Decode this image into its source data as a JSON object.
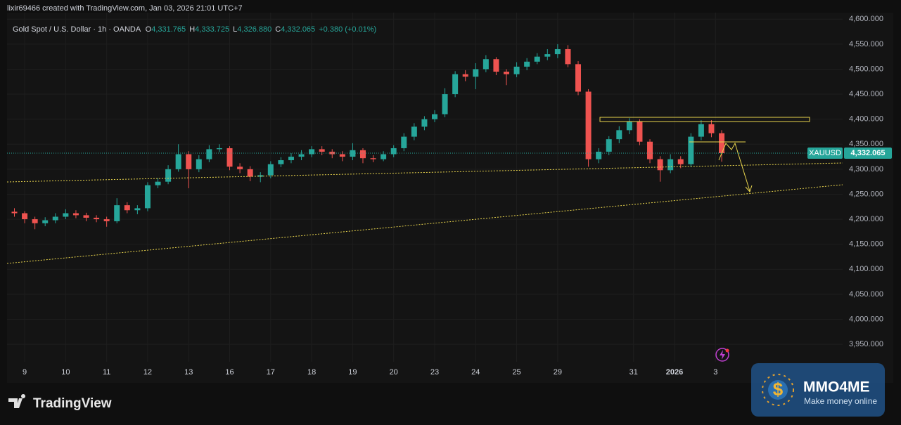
{
  "header": {
    "credit": "lixir69466 created with TradingView.com, Jan 03, 2026 21:01 UTC+7",
    "symbol_line": "Gold Spot / U.S. Dollar · 1h · OANDA",
    "ohlc": [
      {
        "label": "O",
        "value": "4,331.765"
      },
      {
        "label": "H",
        "value": "4,333.725"
      },
      {
        "label": "L",
        "value": "4,326.880"
      },
      {
        "label": "C",
        "value": "4,332.065"
      }
    ],
    "change": "+0.380 (+0.01%)"
  },
  "footer": {
    "brand": "TradingView"
  },
  "watermark": {
    "icon_text": "$",
    "title": "MMO4ME",
    "subtitle": "Make money online"
  },
  "chart_data": {
    "type": "candlestick",
    "symbol": "XAUUSD",
    "last_price_label": "4,332.065",
    "up_color": "#26a69a",
    "down_color": "#ef5350",
    "grid": true,
    "x": [
      -0.25,
      0,
      0.25,
      0.5,
      0.75,
      1,
      1.25,
      1.5,
      1.75,
      2,
      2.25,
      2.5,
      2.75,
      3,
      3.25,
      3.5,
      3.75,
      4,
      4.25,
      4.5,
      4.75,
      5,
      5.25,
      5.5,
      5.75,
      6,
      6.25,
      6.5,
      6.75,
      7,
      7.25,
      7.5,
      7.75,
      8,
      8.25,
      8.5,
      8.75,
      9,
      9.25,
      9.5,
      9.75,
      10,
      10.25,
      10.5,
      10.75,
      11,
      11.25,
      11.5,
      11.75,
      12,
      12.25,
      12.5,
      12.75,
      13,
      13.25,
      13.5,
      13.75,
      14,
      14.25,
      14.5,
      14.75,
      15,
      15.25,
      15.5,
      15.75,
      16,
      16.25,
      16.5,
      16.75,
      17
    ],
    "open": [
      4215,
      4212,
      4200,
      4192,
      4198,
      4205,
      4212,
      4208,
      4203,
      4200,
      4196,
      4228,
      4218,
      4222,
      4268,
      4275,
      4300,
      4330,
      4300,
      4320,
      4340,
      4342,
      4305,
      4300,
      4285,
      4288,
      4310,
      4318,
      4325,
      4330,
      4340,
      4335,
      4330,
      4325,
      4338,
      4322,
      4320,
      4330,
      4342,
      4365,
      4385,
      4400,
      4410,
      4450,
      4490,
      4485,
      4500,
      4520,
      4495,
      4490,
      4505,
      4515,
      4525,
      4530,
      4540,
      4510,
      4455,
      4320,
      4335,
      4360,
      4378,
      4395,
      4355,
      4320,
      4298,
      4320,
      4310,
      4365,
      4390,
      4372
    ],
    "high": [
      4222,
      4216,
      4205,
      4204,
      4212,
      4220,
      4218,
      4213,
      4208,
      4205,
      4242,
      4234,
      4228,
      4274,
      4282,
      4308,
      4350,
      4336,
      4328,
      4348,
      4350,
      4346,
      4312,
      4306,
      4294,
      4316,
      4324,
      4332,
      4338,
      4346,
      4346,
      4340,
      4336,
      4352,
      4342,
      4328,
      4336,
      4348,
      4372,
      4392,
      4406,
      4418,
      4462,
      4496,
      4498,
      4512,
      4528,
      4524,
      4500,
      4514,
      4522,
      4532,
      4540,
      4550,
      4548,
      4516,
      4460,
      4342,
      4366,
      4386,
      4402,
      4400,
      4360,
      4326,
      4330,
      4326,
      4372,
      4398,
      4398,
      4378
    ],
    "low": [
      4205,
      4192,
      4180,
      4186,
      4192,
      4200,
      4202,
      4196,
      4194,
      4185,
      4192,
      4212,
      4210,
      4216,
      4262,
      4270,
      4295,
      4262,
      4294,
      4314,
      4334,
      4298,
      4292,
      4276,
      4274,
      4282,
      4304,
      4312,
      4318,
      4324,
      4328,
      4322,
      4316,
      4318,
      4312,
      4314,
      4316,
      4324,
      4336,
      4358,
      4378,
      4394,
      4404,
      4444,
      4476,
      4460,
      4494,
      4488,
      4468,
      4484,
      4498,
      4510,
      4518,
      4522,
      4504,
      4448,
      4305,
      4312,
      4328,
      4352,
      4370,
      4348,
      4312,
      4275,
      4292,
      4302,
      4304,
      4358,
      4364,
      4315
    ],
    "close": [
      4212,
      4200,
      4192,
      4198,
      4205,
      4212,
      4208,
      4203,
      4200,
      4196,
      4228,
      4218,
      4222,
      4268,
      4275,
      4300,
      4330,
      4300,
      4320,
      4340,
      4342,
      4305,
      4300,
      4285,
      4288,
      4310,
      4318,
      4325,
      4330,
      4340,
      4335,
      4330,
      4325,
      4338,
      4322,
      4320,
      4330,
      4342,
      4365,
      4385,
      4400,
      4410,
      4450,
      4490,
      4485,
      4500,
      4520,
      4495,
      4490,
      4505,
      4515,
      4525,
      4530,
      4540,
      4510,
      4455,
      4320,
      4335,
      4360,
      4378,
      4395,
      4355,
      4320,
      4298,
      4320,
      4310,
      4365,
      4390,
      4372,
      4332.065
    ],
    "xlim": [
      -0.43,
      19.95
    ],
    "xticks": [
      {
        "value": 0,
        "label": "9"
      },
      {
        "value": 1,
        "label": "10"
      },
      {
        "value": 2,
        "label": "11"
      },
      {
        "value": 3,
        "label": "12"
      },
      {
        "value": 4,
        "label": "13"
      },
      {
        "value": 5,
        "label": "16"
      },
      {
        "value": 6,
        "label": "17"
      },
      {
        "value": 7,
        "label": "18"
      },
      {
        "value": 8,
        "label": "19"
      },
      {
        "value": 9,
        "label": "20"
      },
      {
        "value": 10,
        "label": "23"
      },
      {
        "value": 11,
        "label": "24"
      },
      {
        "value": 12,
        "label": "25"
      },
      {
        "value": 13,
        "label": "29"
      },
      {
        "value": 14.85,
        "label": "31"
      },
      {
        "value": 15.85,
        "label": "2026"
      },
      {
        "value": 16.85,
        "label": "3"
      }
    ],
    "ylim": [
      3915,
      4613
    ],
    "yticks": [
      {
        "value": 3950,
        "label": "3,950.000"
      },
      {
        "value": 4000,
        "label": "4,000.000"
      },
      {
        "value": 4050,
        "label": "4,050.000"
      },
      {
        "value": 4100,
        "label": "4,100.000"
      },
      {
        "value": 4150,
        "label": "4,150.000"
      },
      {
        "value": 4200,
        "label": "4,200.000"
      },
      {
        "value": 4250,
        "label": "4,250.000"
      },
      {
        "value": 4300,
        "label": "4,300.000"
      },
      {
        "value": 4350,
        "label": "4,350.000"
      },
      {
        "value": 4400,
        "label": "4,400.000"
      },
      {
        "value": 4450,
        "label": "4,450.000"
      },
      {
        "value": 4500,
        "label": "4,500.000"
      },
      {
        "value": 4550,
        "label": "4,550.000"
      },
      {
        "value": 4600,
        "label": "4,600.000"
      }
    ]
  }
}
